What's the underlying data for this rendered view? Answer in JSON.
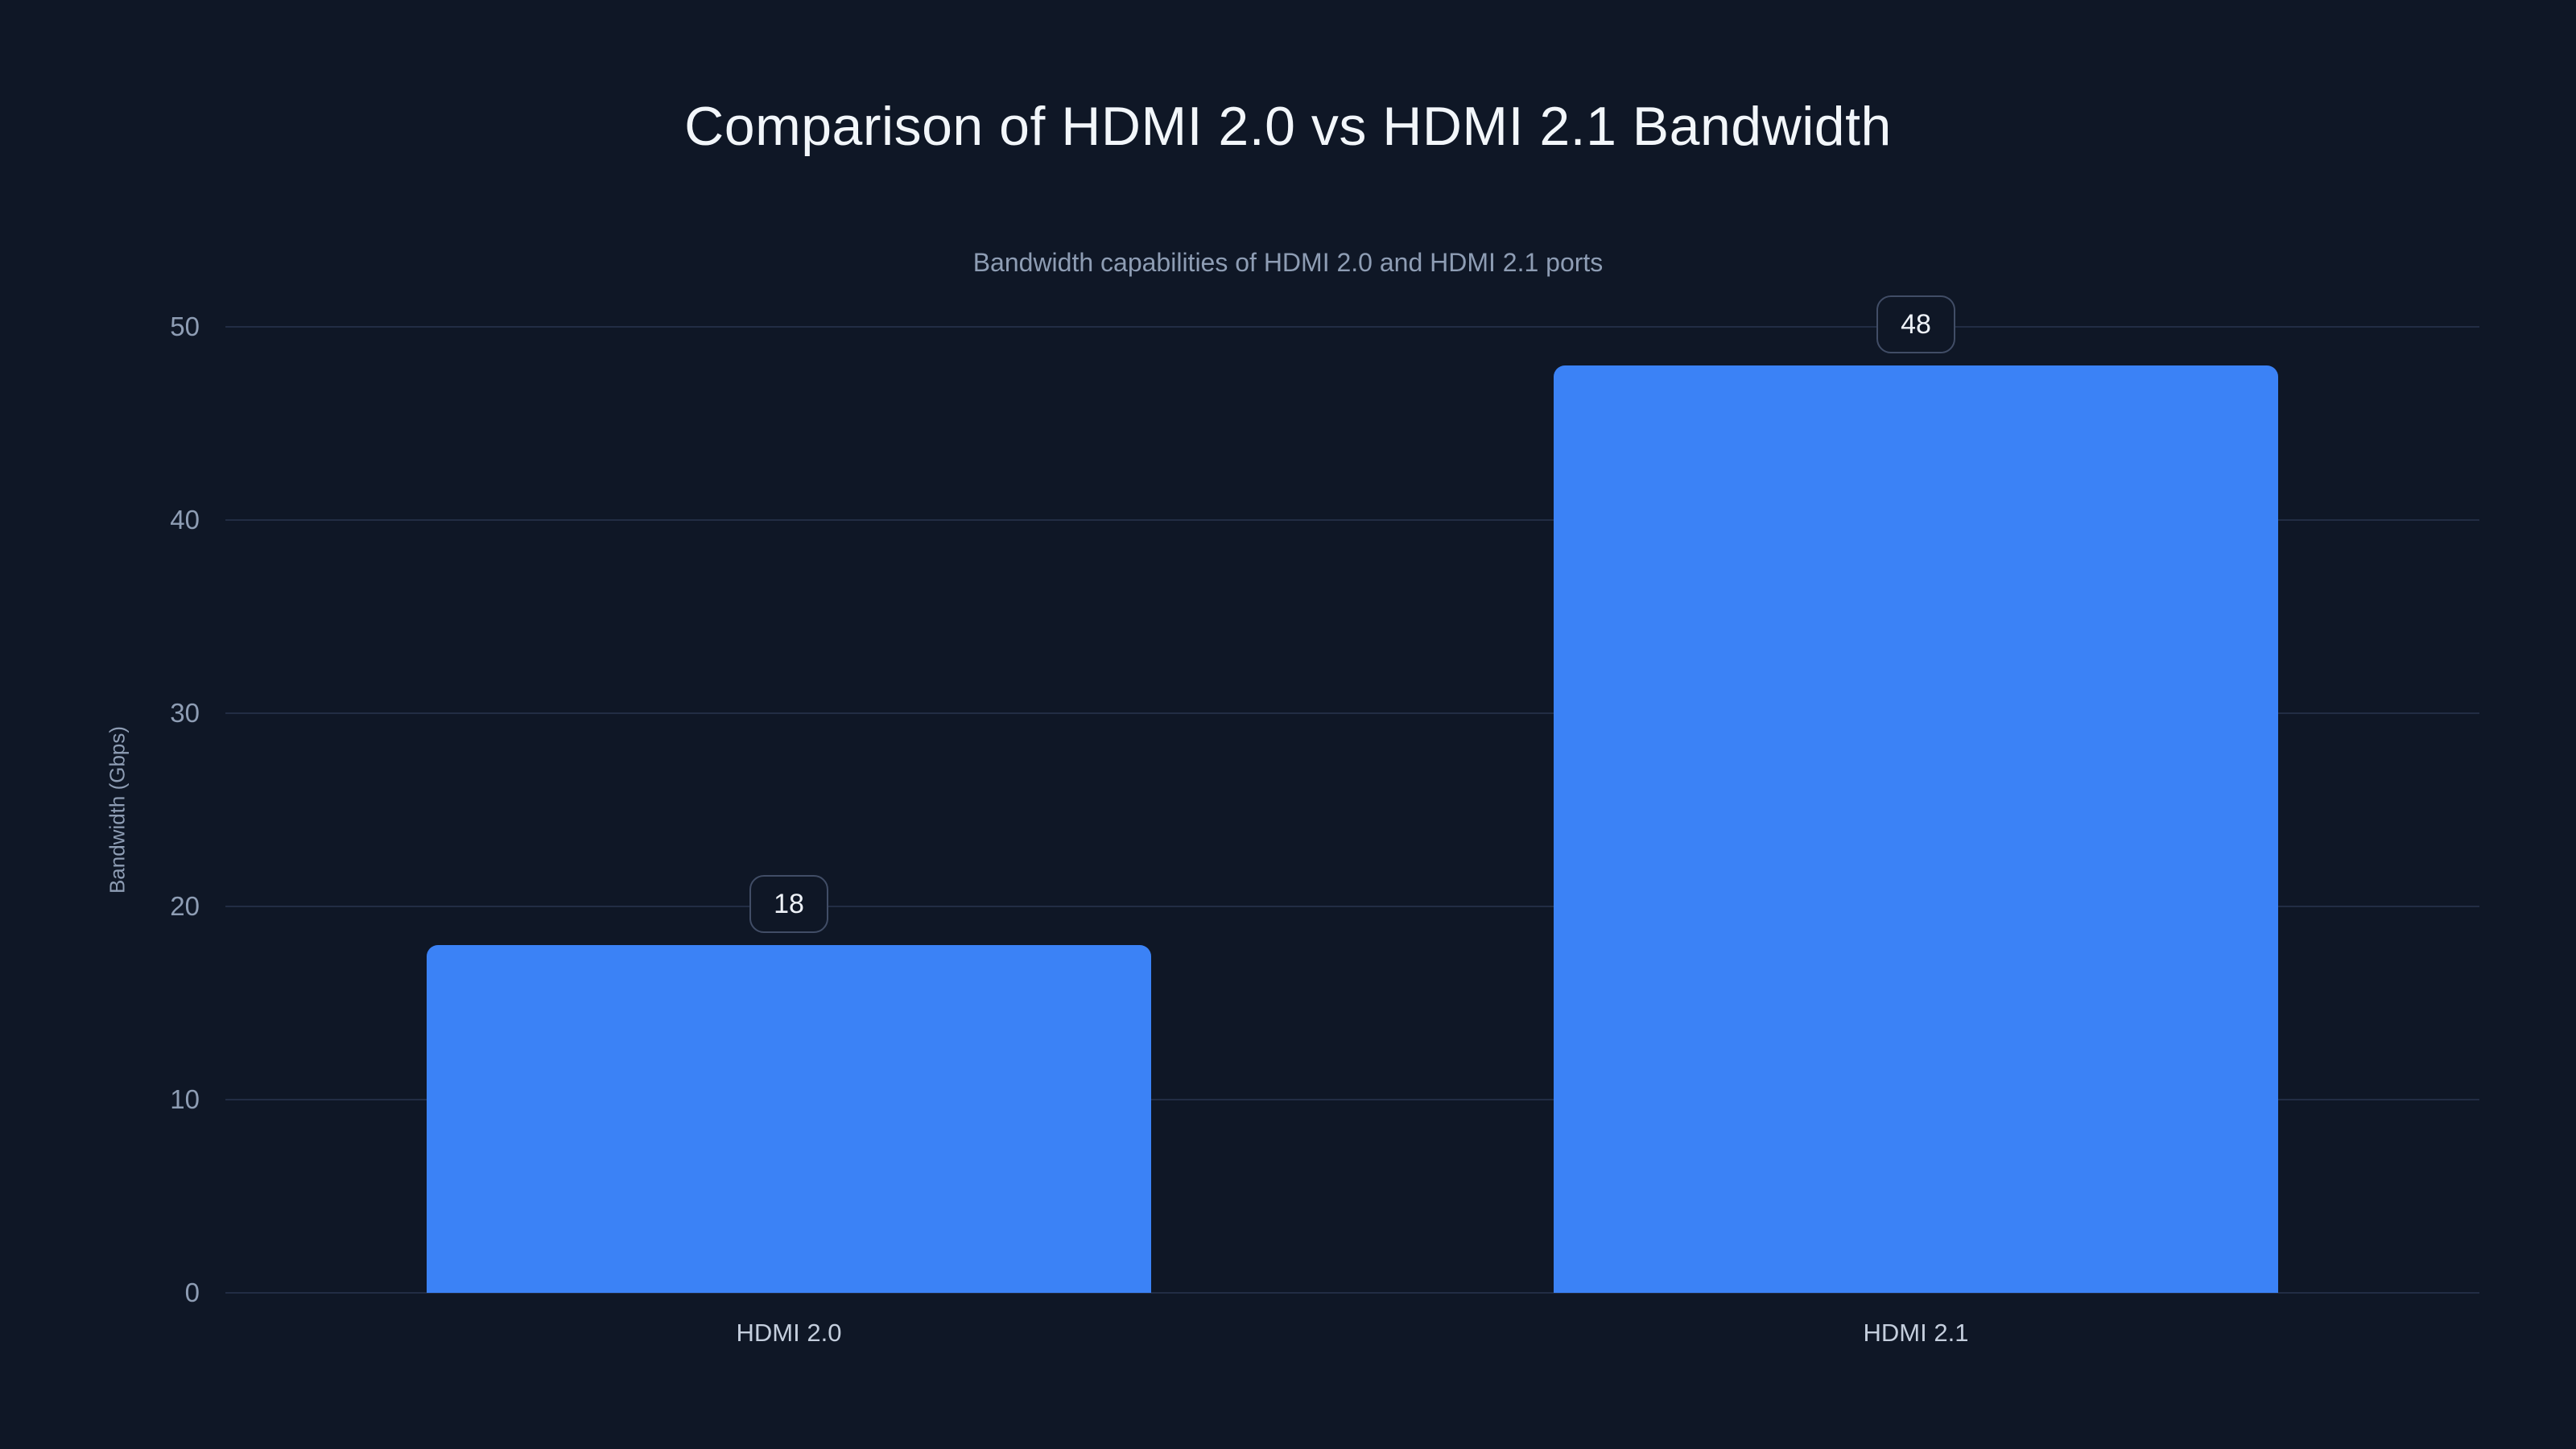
{
  "header": {
    "title": "Comparison of HDMI 2.0 vs HDMI 2.1 Bandwidth",
    "subtitle": "Bandwidth capabilities of HDMI 2.0 and HDMI 2.1 ports"
  },
  "colors": {
    "background": "#0f1726",
    "bar": "#3b82f6",
    "grid": "#222d44",
    "title_text": "#f2f6fa",
    "muted_text": "#8e9db4",
    "category_text": "#c4cedd",
    "badge_border": "#414d66",
    "badge_text": "#eef2f8"
  },
  "chart_data": {
    "type": "bar",
    "title": "Comparison of HDMI 2.0 vs HDMI 2.1 Bandwidth",
    "subtitle": "Bandwidth capabilities of HDMI 2.0 and HDMI 2.1 ports",
    "categories": [
      "HDMI 2.0",
      "HDMI 2.1"
    ],
    "values": [
      18,
      48
    ],
    "data_labels": [
      "18",
      "48"
    ],
    "xlabel": "",
    "ylabel": "Bandwidth (Gbps)",
    "ylim": [
      0,
      50
    ],
    "yticks": [
      0,
      10,
      20,
      30,
      40,
      50
    ],
    "grid": "horizontal-only",
    "legend": "none",
    "bar_corner": "rounded-top"
  }
}
